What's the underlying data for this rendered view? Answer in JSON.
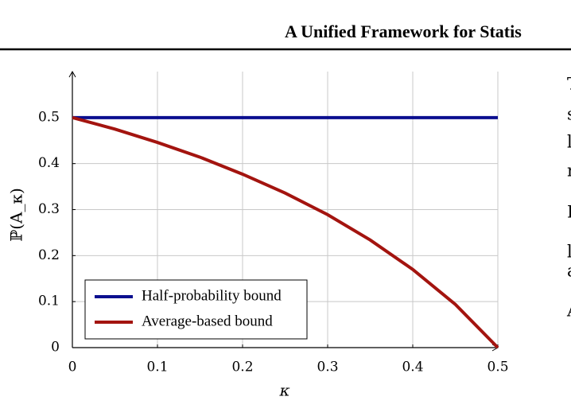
{
  "header": {
    "title": "A Unified Framework for Statis"
  },
  "right_column_fragments": [
    "T",
    "s",
    "l",
    "r",
    "I",
    "l",
    "a",
    "A"
  ],
  "chart_data": {
    "type": "line",
    "x_label": "κ",
    "y_label": "ℙ(A_κ)",
    "x": [
      0,
      0.05,
      0.1,
      0.15,
      0.2,
      0.25,
      0.3,
      0.35,
      0.4,
      0.45,
      0.5
    ],
    "series": [
      {
        "name": "Half-probability bound",
        "color": "#0b0f8f",
        "values": [
          0.5,
          0.5,
          0.5,
          0.5,
          0.5,
          0.5,
          0.5,
          0.5,
          0.5,
          0.5,
          0.5
        ]
      },
      {
        "name": "Average-based bound",
        "color": "#a3140f",
        "values": [
          0.5,
          0.475,
          0.446,
          0.414,
          0.377,
          0.336,
          0.289,
          0.234,
          0.17,
          0.094,
          0
        ]
      }
    ],
    "xlim": [
      0,
      0.5
    ],
    "ylim": [
      0,
      0.6
    ],
    "xticks": [
      0,
      0.1,
      0.2,
      0.3,
      0.4,
      0.5
    ],
    "yticks": [
      0,
      0.1,
      0.2,
      0.3,
      0.4,
      0.5
    ],
    "grid": true,
    "legend": "lower left"
  }
}
